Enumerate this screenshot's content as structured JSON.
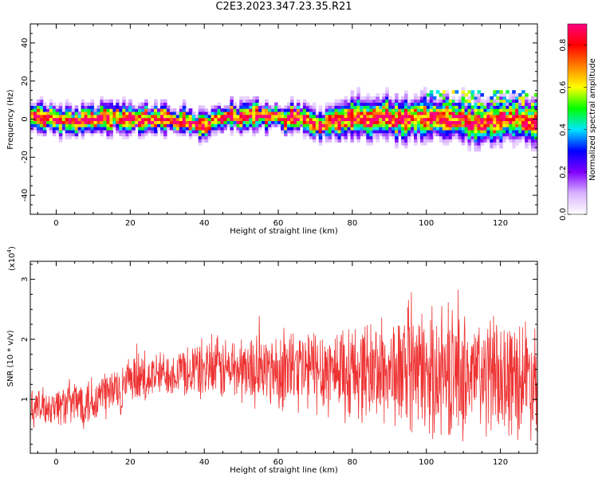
{
  "title": "C2E3.2023.347.23.35.R21",
  "chart_data": [
    {
      "type": "heatmap",
      "title": "",
      "xlabel": "Height of straight line (km)",
      "ylabel": "Frequency (Hz)",
      "xlim": [
        -7,
        130
      ],
      "ylim": [
        -50,
        50
      ],
      "xticks": [
        0,
        20,
        40,
        60,
        80,
        100,
        120
      ],
      "yticks": [
        -40,
        -20,
        0,
        20,
        40
      ],
      "colorbar": {
        "label": "Normalized spectral amplitude",
        "range": [
          0,
          0.9
        ],
        "ticks": [
          "0.0",
          "0.2",
          "0.4",
          "0.6",
          "0.8"
        ],
        "colors": [
          "#ffffff",
          "#d9b3ff",
          "#8000ff",
          "#0000ff",
          "#00e5ff",
          "#00ff00",
          "#ffff00",
          "#ff8000",
          "#ff0000",
          "#ff0080"
        ]
      },
      "grid": false
    },
    {
      "type": "line",
      "title": "",
      "xlabel": "Height of straight line (km)",
      "ylabel": "SNR (10 * v/v)",
      "yscale_label": "(x10",
      "yscale_exp": "4",
      "yscale_close": ")",
      "xlim": [
        -7,
        130
      ],
      "ylim": [
        0.1,
        3.3
      ],
      "xticks": [
        0,
        20,
        40,
        60,
        80,
        100,
        120
      ],
      "yticks": [
        1,
        2,
        3
      ],
      "series_color": "#ee3333",
      "envelope": {
        "x": [
          -7,
          0,
          10,
          20,
          30,
          40,
          50,
          60,
          70,
          80,
          90,
          100,
          110,
          120,
          130
        ],
        "center": [
          0.85,
          0.9,
          1.0,
          1.25,
          1.45,
          1.5,
          1.5,
          1.5,
          1.5,
          1.5,
          1.45,
          1.45,
          1.4,
          1.4,
          1.4
        ],
        "spread": [
          0.3,
          0.35,
          0.5,
          0.45,
          0.4,
          0.55,
          0.6,
          0.7,
          0.8,
          0.85,
          0.95,
          1.1,
          1.1,
          1.05,
          1.05
        ]
      },
      "grid": false
    }
  ]
}
